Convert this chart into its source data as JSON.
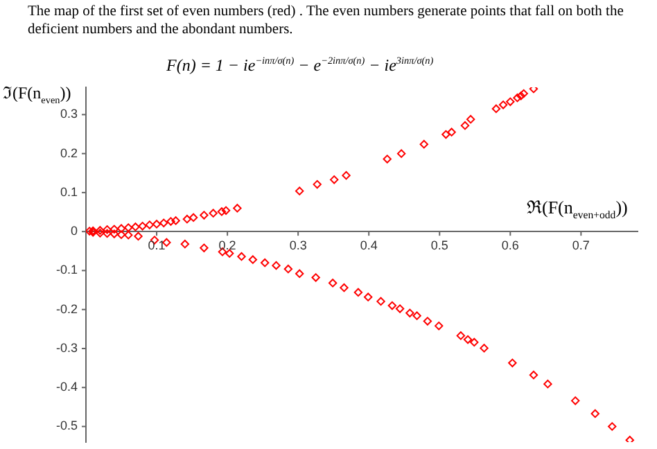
{
  "chart_data": {
    "type": "scatter",
    "title": "The map of the first set of even numbers (red) . The even numbers generate points that fall on both the deficient numbers and the abondant numbers.",
    "annotations": [
      "F(n) = 1 − ie$^{−inπ/σ(n)}$ − e$^{−2inπ/σ(n)}$ − ie$^{3inπ/σ(n)}$"
    ],
    "xlabel": "ℜ(F(n$_{even+odd}$))",
    "ylabel": "ℑ(F(n$_{even}$))",
    "xlim": [
      0,
      0.78
    ],
    "ylim": [
      -0.54,
      0.37
    ],
    "xticks": [
      0.1,
      0.2,
      0.3,
      0.4,
      0.5,
      0.6,
      0.7
    ],
    "yticks": [
      -0.5,
      -0.4,
      -0.3,
      -0.2,
      -0.1,
      0,
      0.1,
      0.2,
      0.3
    ],
    "grid": false,
    "legend": false,
    "marker": "diamond",
    "series": [
      {
        "color": "#ff0000",
        "x": [
          0.005,
          0.01,
          0.02,
          0.03,
          0.04,
          0.05,
          0.06,
          0.07,
          0.08,
          0.09,
          0.1,
          0.11,
          0.12,
          0.127,
          0.143,
          0.152,
          0.167,
          0.18,
          0.192,
          0.198,
          0.214,
          0.302,
          0.327,
          0.351,
          0.368,
          0.426,
          0.446,
          0.478,
          0.509,
          0.517,
          0.536,
          0.544,
          0.58,
          0.59,
          0.6,
          0.61,
          0.615,
          0.619,
          0.633
        ],
        "values": [
          0.001,
          0.002,
          0.003,
          0.005,
          0.006,
          0.008,
          0.01,
          0.012,
          0.014,
          0.017,
          0.019,
          0.022,
          0.026,
          0.028,
          0.032,
          0.036,
          0.042,
          0.047,
          0.051,
          0.054,
          0.06,
          0.104,
          0.121,
          0.133,
          0.144,
          0.186,
          0.2,
          0.224,
          0.249,
          0.255,
          0.272,
          0.288,
          0.315,
          0.325,
          0.333,
          0.343,
          0.348,
          0.354,
          0.366
        ]
      },
      {
        "color": "#ff0000",
        "x": [
          0.01,
          0.02,
          0.03,
          0.04,
          0.05,
          0.06,
          0.074,
          0.097,
          0.114,
          0.14,
          0.167,
          0.193,
          0.203,
          0.22,
          0.236,
          0.253,
          0.269,
          0.286,
          0.302,
          0.325,
          0.349,
          0.365,
          0.385,
          0.399,
          0.417,
          0.433,
          0.444,
          0.458,
          0.468,
          0.483,
          0.499,
          0.53,
          0.54,
          0.549,
          0.563,
          0.603,
          0.633,
          0.653,
          0.692,
          0.72,
          0.744,
          0.769
        ],
        "values": [
          -0.002,
          -0.004,
          -0.005,
          -0.006,
          -0.008,
          -0.009,
          -0.012,
          -0.022,
          -0.028,
          -0.032,
          -0.042,
          -0.052,
          -0.056,
          -0.064,
          -0.072,
          -0.08,
          -0.087,
          -0.096,
          -0.108,
          -0.118,
          -0.132,
          -0.144,
          -0.156,
          -0.168,
          -0.179,
          -0.19,
          -0.198,
          -0.209,
          -0.216,
          -0.23,
          -0.242,
          -0.267,
          -0.277,
          -0.284,
          -0.299,
          -0.337,
          -0.368,
          -0.391,
          -0.434,
          -0.467,
          -0.5,
          -0.535
        ]
      }
    ]
  }
}
